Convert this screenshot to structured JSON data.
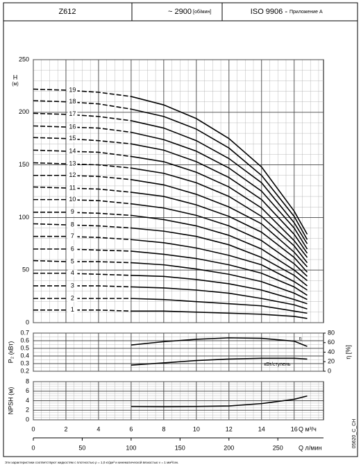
{
  "header": {
    "model": "Z612",
    "speed": "~ 2900",
    "speed_unit": "[об/мин]",
    "standard": "ISO 9906 -",
    "annex": "Приложение А"
  },
  "footnote": "Эти характеристики соответствуют жидкостям с плотностью ρ = 1,0 кг/дм³ и кинематической вязкостью ν = 1 мм²/сек.",
  "code": "05620_C_CH",
  "chart_data": [
    {
      "type": "line",
      "ylabel": "H",
      "yunit": "(м)",
      "dashed_below_x": 6,
      "x": [
        0,
        2,
        4,
        6,
        8,
        10,
        12,
        14,
        16,
        16.8
      ],
      "xlim": [
        0,
        17.8
      ],
      "xticks": [
        0,
        2,
        4,
        6,
        8,
        10,
        12,
        14,
        16
      ],
      "ylim": [
        0,
        250
      ],
      "yticks": [
        0,
        50,
        100,
        150,
        200,
        250
      ],
      "grid": true,
      "color": "#000000",
      "series": [
        {
          "name": "1",
          "values": [
            12,
            12,
            12,
            11,
            11,
            10,
            9,
            8,
            6,
            4
          ]
        },
        {
          "name": "2",
          "values": [
            23,
            23,
            23,
            23,
            22,
            20,
            18,
            16,
            11,
            9
          ]
        },
        {
          "name": "3",
          "values": [
            35,
            35,
            35,
            34,
            33,
            31,
            28,
            23,
            17,
            13
          ]
        },
        {
          "name": "4",
          "values": [
            47,
            47,
            46,
            45,
            44,
            41,
            37,
            31,
            22,
            18
          ]
        },
        {
          "name": "5",
          "values": [
            59,
            58,
            58,
            57,
            55,
            51,
            46,
            39,
            28,
            22
          ]
        },
        {
          "name": "6",
          "values": [
            70,
            70,
            69,
            68,
            65,
            61,
            55,
            47,
            34,
            26
          ]
        },
        {
          "name": "7",
          "values": [
            82,
            82,
            81,
            79,
            76,
            71,
            64,
            55,
            39,
            31
          ]
        },
        {
          "name": "8",
          "values": [
            94,
            93,
            92,
            90,
            87,
            82,
            74,
            62,
            45,
            35
          ]
        },
        {
          "name": "9",
          "values": [
            105,
            105,
            104,
            102,
            98,
            92,
            83,
            70,
            50,
            40
          ]
        },
        {
          "name": "10",
          "values": [
            117,
            117,
            116,
            113,
            109,
            102,
            92,
            78,
            56,
            44
          ]
        },
        {
          "name": "11",
          "values": [
            129,
            128,
            127,
            124,
            120,
            112,
            101,
            86,
            62,
            48
          ]
        },
        {
          "name": "12",
          "values": [
            140,
            140,
            139,
            136,
            131,
            122,
            110,
            94,
            67,
            53
          ]
        },
        {
          "name": "13",
          "values": [
            152,
            151,
            150,
            147,
            142,
            133,
            120,
            101,
            73,
            57
          ]
        },
        {
          "name": "14",
          "values": [
            164,
            163,
            162,
            158,
            153,
            143,
            129,
            109,
            78,
            62
          ]
        },
        {
          "name": "15",
          "values": [
            176,
            175,
            173,
            170,
            164,
            153,
            138,
            117,
            84,
            66
          ]
        },
        {
          "name": "16",
          "values": [
            187,
            186,
            185,
            181,
            174,
            163,
            147,
            125,
            90,
            70
          ]
        },
        {
          "name": "17",
          "values": [
            199,
            198,
            196,
            192,
            185,
            173,
            156,
            133,
            95,
            75
          ]
        },
        {
          "name": "18",
          "values": [
            211,
            210,
            208,
            203,
            196,
            184,
            166,
            140,
            101,
            79
          ]
        },
        {
          "name": "19",
          "values": [
            222,
            221,
            219,
            215,
            207,
            194,
            175,
            148,
            106,
            84
          ]
        }
      ]
    },
    {
      "type": "line",
      "ylabel": "P₂ (кВт)",
      "y2label": "η [%]",
      "x": [
        6,
        8,
        10,
        12,
        14,
        16,
        16.8
      ],
      "xlim": [
        0,
        17.8
      ],
      "xticks": [
        0,
        2,
        4,
        6,
        8,
        10,
        12,
        14,
        16
      ],
      "ylim": [
        0.2,
        0.7
      ],
      "yticks": [
        0.2,
        0.3,
        0.4,
        0.5,
        0.6,
        0.7
      ],
      "y2lim": [
        0,
        80
      ],
      "y2ticks": [
        0,
        20,
        40,
        60,
        80
      ],
      "grid": true,
      "series": [
        {
          "name": "η",
          "axis": "y2",
          "color": "#000000",
          "values": [
            55,
            62,
            67,
            70,
            69,
            63,
            52
          ]
        },
        {
          "name": "кВт/ступень",
          "color": "#000000",
          "values": [
            0.28,
            0.31,
            0.34,
            0.36,
            0.37,
            0.37,
            0.36
          ]
        }
      ]
    },
    {
      "type": "line",
      "ylabel": "NPSH (м)",
      "xlabel": "Q  м³/ч",
      "x2label": "Q  л/мин",
      "x": [
        6,
        8,
        10,
        12,
        14,
        16,
        16.8
      ],
      "xlim": [
        0,
        17.8
      ],
      "xticks": [
        0,
        2,
        4,
        6,
        8,
        10,
        12,
        14,
        16
      ],
      "x2lim": [
        0,
        296.7
      ],
      "x2ticks": [
        0,
        50,
        100,
        150,
        200,
        250
      ],
      "ylim": [
        0,
        8
      ],
      "yticks": [
        0,
        2,
        4,
        6,
        8
      ],
      "grid": true,
      "series": [
        {
          "name": "NPSH",
          "color": "#000000",
          "values": [
            2.8,
            2.75,
            2.8,
            2.9,
            3.4,
            4.3,
            5.0
          ]
        }
      ]
    }
  ]
}
